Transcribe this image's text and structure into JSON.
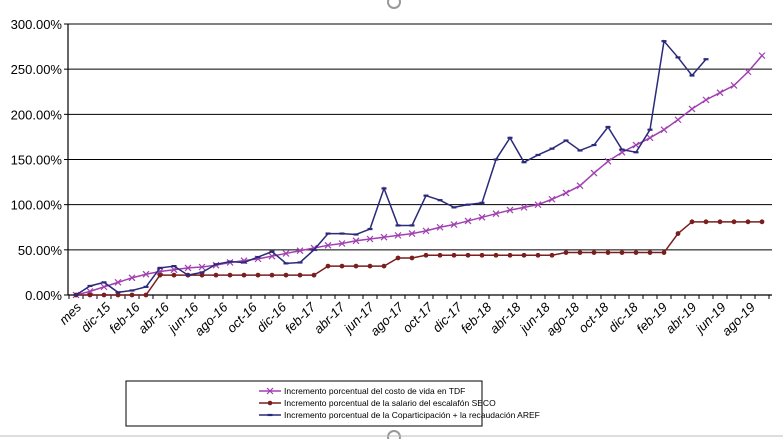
{
  "chart_data": {
    "type": "line",
    "title": "",
    "xlabel": "",
    "ylabel": "",
    "ylim": [
      0,
      300
    ],
    "y_ticks": [
      "0.00%",
      "50.00%",
      "100.00%",
      "150.00%",
      "200.00%",
      "250.00%",
      "300.00%"
    ],
    "x_tick_labels": [
      "mes",
      "dic-15",
      "feb-16",
      "abr-16",
      "jun-16",
      "ago-16",
      "oct-16",
      "dic-16",
      "feb-17",
      "abr-17",
      "jun-17",
      "ago-17",
      "oct-17",
      "dic-17",
      "feb-18",
      "abr-18",
      "jun-18",
      "ago-18",
      "oct-18",
      "dic-18",
      "feb-19",
      "abr-19",
      "jun-19",
      "ago-19"
    ],
    "grid": "horizontal",
    "legend_position": "bottom",
    "series": [
      {
        "name": "Incremento porcentual del costo de vida en TDF",
        "color": "#a040b0",
        "marker": "x",
        "values": [
          0,
          4,
          9,
          14,
          19,
          23,
          26,
          28,
          30,
          31,
          33,
          36,
          38,
          40,
          43,
          46,
          49,
          52,
          55,
          57,
          60,
          62,
          64,
          66,
          68,
          71,
          75,
          78,
          82,
          86,
          90,
          94,
          97,
          100,
          106,
          113,
          121,
          135,
          148,
          158,
          166,
          174,
          183,
          194,
          206,
          216,
          224,
          232,
          247,
          265
        ]
      },
      {
        "name": "Incremento porcentual de la salario del escalafón SECO",
        "color": "#7a1e1e",
        "marker": "circle",
        "values": [
          0,
          0,
          0,
          0,
          0,
          0,
          22,
          22,
          22,
          22,
          22,
          22,
          22,
          22,
          22,
          22,
          22,
          22,
          32,
          32,
          32,
          32,
          32,
          41,
          41,
          44,
          44,
          44,
          44,
          44,
          44,
          44,
          44,
          44,
          44,
          47,
          47,
          47,
          47,
          47,
          47,
          47,
          47,
          68,
          81,
          81,
          81,
          81,
          81,
          81
        ]
      },
      {
        "name": "Incremento porcentual de la Coparticipación + la recaudación AREF",
        "color": "#2a2a7a",
        "marker": "dash",
        "values": [
          0,
          10,
          14,
          3,
          5,
          9,
          30,
          32,
          22,
          25,
          34,
          37,
          36,
          42,
          48,
          35,
          36,
          50,
          68,
          68,
          67,
          73,
          118,
          77,
          77,
          110,
          105,
          97,
          100,
          102,
          150,
          174,
          147,
          155,
          162,
          171,
          160,
          166,
          186,
          161,
          158,
          183,
          281,
          263,
          243,
          261
        ]
      }
    ]
  }
}
